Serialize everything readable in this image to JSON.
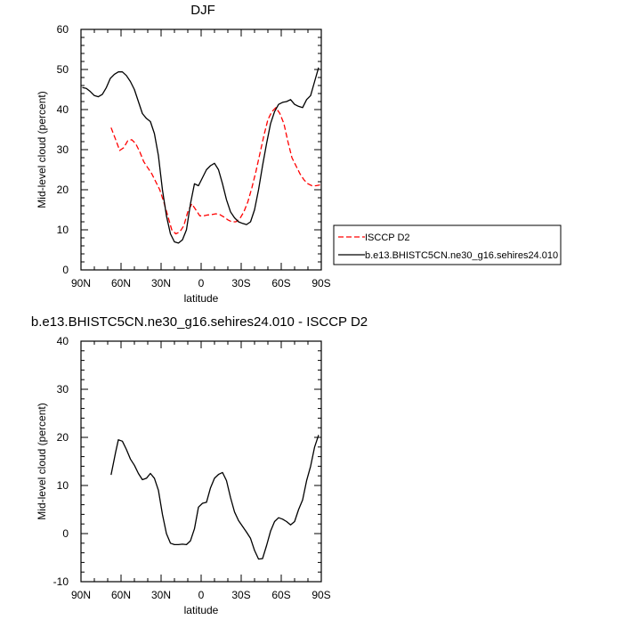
{
  "chart_data": [
    {
      "type": "line",
      "title": "DJF",
      "xlabel": "latitude",
      "ylabel": "Mid-level cloud (percent)",
      "xlim": [
        -90,
        90
      ],
      "ylim": [
        0,
        60
      ],
      "x_ticks": [
        -90,
        -60,
        -30,
        0,
        30,
        60,
        90
      ],
      "x_tick_labels": [
        "90N",
        "60N",
        "30N",
        "0",
        "30S",
        "60S",
        "90S"
      ],
      "y_ticks": [
        0,
        10,
        20,
        30,
        40,
        50,
        60
      ],
      "y_tick_labels": [
        "0",
        "10",
        "20",
        "30",
        "40",
        "50",
        "60"
      ],
      "legend_position": "outside-right",
      "series": [
        {
          "name": "ISCCP D2",
          "color": "#ff0000",
          "dash": "dashed",
          "x": [
            -67.5,
            -64,
            -61,
            -58,
            -55,
            -52,
            -49,
            -46,
            -43,
            -40,
            -37,
            -34,
            -31,
            -28,
            -25,
            -22,
            -19,
            -16,
            -13,
            -10,
            -7,
            -4,
            -1,
            2,
            5,
            8,
            11,
            14,
            17,
            20,
            23,
            26,
            29,
            32,
            35,
            38,
            41,
            44,
            47,
            50,
            53,
            56,
            59,
            62,
            65,
            68,
            71,
            74,
            77,
            80,
            83,
            86,
            89
          ],
          "y": [
            35.5,
            32.5,
            29.8,
            30.5,
            32.2,
            32.5,
            31.5,
            29.5,
            27,
            25.5,
            24,
            22,
            20,
            17,
            13.5,
            10,
            9,
            9.5,
            11,
            14.5,
            16.5,
            15,
            13.5,
            13.5,
            13.7,
            13.8,
            14,
            13.8,
            13.2,
            12.5,
            12,
            12,
            12.8,
            14.5,
            17,
            20.5,
            24.5,
            29,
            33.5,
            37.5,
            39.5,
            40.5,
            39,
            36.5,
            32,
            28,
            26,
            24,
            22.5,
            21.5,
            21,
            21,
            21.2
          ]
        },
        {
          "name": "b.e13.BHISTC5CN.ne30_g16.sehires24.010",
          "color": "#000000",
          "dash": "solid",
          "x": [
            -89,
            -86,
            -83,
            -80,
            -77,
            -74,
            -71,
            -68,
            -65,
            -62,
            -59,
            -56,
            -53,
            -50,
            -47,
            -44,
            -41,
            -38,
            -35,
            -32,
            -29,
            -26,
            -23,
            -20,
            -17,
            -14,
            -11,
            -8,
            -5,
            -2,
            1,
            4,
            7,
            10,
            13,
            16,
            19,
            22,
            25,
            28,
            31,
            34,
            37,
            40,
            43,
            46,
            49,
            52,
            55,
            58,
            61,
            64,
            67,
            70,
            73,
            76,
            79,
            82,
            85,
            88
          ],
          "y": [
            45.5,
            45.3,
            44.5,
            43.5,
            43.2,
            43.8,
            45.5,
            47.8,
            48.8,
            49.4,
            49.4,
            48.5,
            47,
            45,
            42,
            39,
            37.8,
            37,
            34,
            28.5,
            20,
            13.5,
            9,
            7,
            6.7,
            7.5,
            10,
            16.5,
            21.5,
            21,
            23,
            25,
            26,
            26.6,
            25,
            21.5,
            17.5,
            14.5,
            13,
            12,
            11.6,
            11.3,
            12,
            15,
            20,
            26,
            31.5,
            36.5,
            39.5,
            41.3,
            41.8,
            42,
            42.5,
            41.3,
            40.8,
            40.5,
            42.5,
            43.5,
            47,
            50.5
          ]
        }
      ]
    },
    {
      "type": "line",
      "title": "b.e13.BHISTC5CN.ne30_g16.sehires24.010 - ISCCP D2",
      "xlabel": "latitude",
      "ylabel": "Mid-level cloud (percent)",
      "xlim": [
        -90,
        90
      ],
      "ylim": [
        -10,
        40
      ],
      "x_ticks": [
        -90,
        -60,
        -30,
        0,
        30,
        60,
        90
      ],
      "x_tick_labels": [
        "90N",
        "60N",
        "30N",
        "0",
        "30S",
        "60S",
        "90S"
      ],
      "y_ticks": [
        -10,
        0,
        10,
        20,
        30,
        40
      ],
      "y_tick_labels": [
        "-10",
        "0",
        "10",
        "20",
        "30",
        "40"
      ],
      "series": [
        {
          "color": "#000000",
          "dash": "solid",
          "x": [
            -67.5,
            -64,
            -62,
            -59,
            -56,
            -53,
            -50,
            -47,
            -44,
            -41,
            -38,
            -35,
            -32,
            -29,
            -26,
            -23,
            -20,
            -17,
            -14,
            -11,
            -8,
            -5,
            -2,
            1,
            4,
            7,
            10,
            13,
            16,
            19,
            22,
            25,
            28,
            31,
            34,
            37,
            40,
            43,
            46,
            49,
            52,
            55,
            58,
            61,
            64,
            67,
            70,
            73,
            76,
            79,
            82,
            85,
            88
          ],
          "y": [
            12.2,
            17,
            19.5,
            19.2,
            17.5,
            15.5,
            14.2,
            12.5,
            11.2,
            11.5,
            12.5,
            11.5,
            9,
            4,
            0,
            -2,
            -2.3,
            -2.3,
            -2.2,
            -2.3,
            -1.5,
            1,
            5.5,
            6.3,
            6.5,
            9.5,
            11.5,
            12.3,
            12.7,
            11,
            7.5,
            4.5,
            2.7,
            1.5,
            0.3,
            -1,
            -3.5,
            -5.3,
            -5.2,
            -2.5,
            0.5,
            2.5,
            3.3,
            3,
            2.5,
            1.8,
            2.5,
            5,
            7,
            11,
            14,
            18,
            20.5
          ]
        }
      ]
    }
  ]
}
